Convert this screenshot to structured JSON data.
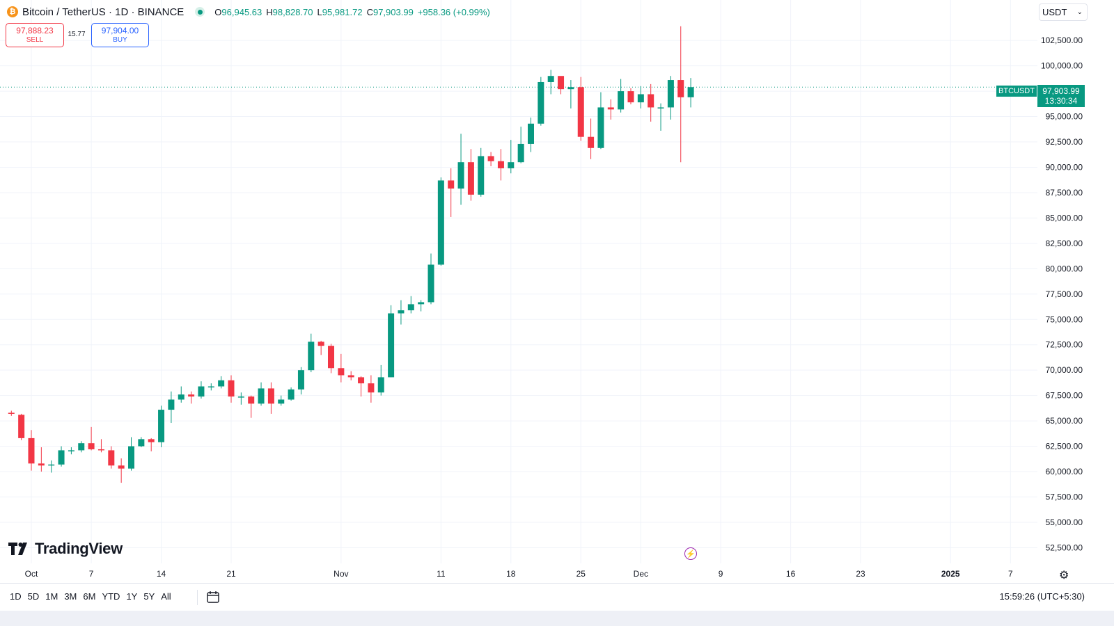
{
  "header": {
    "coin_icon": "bitcoin-icon",
    "symbol_title": "Bitcoin / TetherUS · 1D · BINANCE",
    "ohlc": [
      {
        "k": "O",
        "v": "96,945.63"
      },
      {
        "k": "H",
        "v": "98,828.70"
      },
      {
        "k": "L",
        "v": "95,981.72"
      },
      {
        "k": "C",
        "v": "97,903.99"
      },
      {
        "k": "",
        "v": "+958.36 (+0.99%)"
      }
    ]
  },
  "trading": {
    "sell_price": "97,888.23",
    "sell_label": "SELL",
    "spread": "15.77",
    "buy_price": "97,904.00",
    "buy_label": "BUY"
  },
  "currency": {
    "label": "USDT",
    "icon": "chevron-down-icon"
  },
  "price_tag": {
    "symbol": "BTCUSDT",
    "price": "97,903.99",
    "countdown": "13:30:34"
  },
  "logo_text": "TradingView",
  "bottom": {
    "ranges": [
      "1D",
      "5D",
      "1M",
      "3M",
      "6M",
      "YTD",
      "1Y",
      "5Y",
      "All"
    ],
    "calendar_icon": "calendar-icon",
    "clock": "15:59:26 (UTC+5:30)"
  },
  "colors": {
    "up": "#089981",
    "down": "#f23645",
    "grid": "#f0f3fa",
    "text": "#131722"
  },
  "chart_data": {
    "type": "candlestick",
    "title": "Bitcoin / TetherUS · 1D · BINANCE",
    "xlabel": "",
    "ylabel": "",
    "ylim": [
      51500,
      104500
    ],
    "y_ticks": [
      52500,
      55000,
      57500,
      60000,
      62500,
      65000,
      67500,
      70000,
      72500,
      75000,
      77500,
      80000,
      82500,
      85000,
      87500,
      90000,
      92500,
      95000,
      97500,
      100000,
      102500
    ],
    "y_tick_labels": [
      "52,500.00",
      "55,000.00",
      "57,500.00",
      "60,000.00",
      "62,500.00",
      "65,000.00",
      "67,500.00",
      "70,000.00",
      "72,500.00",
      "75,000.00",
      "77,500.00",
      "80,000.00",
      "82,500.00",
      "85,000.00",
      "87,500.00",
      "90,000.00",
      "92,500.00",
      "95,000.00",
      "97,500.00",
      "100,000.00",
      "102,500.00"
    ],
    "x_tick_labels": [
      {
        "label": "Oct",
        "date": "2024-10-01"
      },
      {
        "label": "7",
        "date": "2024-10-07"
      },
      {
        "label": "14",
        "date": "2024-10-14"
      },
      {
        "label": "21",
        "date": "2024-10-21"
      },
      {
        "label": "Nov",
        "date": "2024-11-01"
      },
      {
        "label": "11",
        "date": "2024-11-11"
      },
      {
        "label": "18",
        "date": "2024-11-18"
      },
      {
        "label": "25",
        "date": "2024-11-25"
      },
      {
        "label": "Dec",
        "date": "2024-12-01"
      },
      {
        "label": "9",
        "date": "2024-12-09"
      },
      {
        "label": "16",
        "date": "2024-12-16"
      },
      {
        "label": "23",
        "date": "2024-12-23"
      },
      {
        "label": "2025",
        "date": "2025-01-01"
      },
      {
        "label": "7",
        "date": "2025-01-07"
      }
    ],
    "candles": [
      {
        "date": "2024-09-29",
        "o": 65800,
        "h": 66000,
        "l": 65500,
        "c": 65700
      },
      {
        "date": "2024-09-30",
        "o": 65600,
        "h": 65700,
        "l": 63100,
        "c": 63300
      },
      {
        "date": "2024-10-01",
        "o": 63300,
        "h": 64100,
        "l": 60100,
        "c": 60800
      },
      {
        "date": "2024-10-02",
        "o": 60800,
        "h": 62400,
        "l": 60000,
        "c": 60600
      },
      {
        "date": "2024-10-03",
        "o": 60600,
        "h": 61100,
        "l": 59900,
        "c": 60700
      },
      {
        "date": "2024-10-04",
        "o": 60700,
        "h": 62500,
        "l": 60500,
        "c": 62100
      },
      {
        "date": "2024-10-05",
        "o": 62100,
        "h": 62400,
        "l": 61700,
        "c": 62100
      },
      {
        "date": "2024-10-06",
        "o": 62100,
        "h": 63000,
        "l": 61900,
        "c": 62800
      },
      {
        "date": "2024-10-07",
        "o": 62800,
        "h": 64400,
        "l": 62100,
        "c": 62200
      },
      {
        "date": "2024-10-08",
        "o": 62200,
        "h": 63200,
        "l": 61900,
        "c": 62100
      },
      {
        "date": "2024-10-09",
        "o": 62100,
        "h": 62500,
        "l": 60300,
        "c": 60600
      },
      {
        "date": "2024-10-10",
        "o": 60600,
        "h": 61300,
        "l": 58900,
        "c": 60300
      },
      {
        "date": "2024-10-11",
        "o": 60300,
        "h": 63400,
        "l": 60100,
        "c": 62500
      },
      {
        "date": "2024-10-12",
        "o": 62500,
        "h": 63400,
        "l": 62400,
        "c": 63200
      },
      {
        "date": "2024-10-13",
        "o": 63200,
        "h": 63300,
        "l": 62000,
        "c": 62900
      },
      {
        "date": "2024-10-14",
        "o": 62900,
        "h": 66500,
        "l": 62400,
        "c": 66100
      },
      {
        "date": "2024-10-15",
        "o": 66100,
        "h": 67900,
        "l": 64800,
        "c": 67100
      },
      {
        "date": "2024-10-16",
        "o": 67100,
        "h": 68400,
        "l": 66800,
        "c": 67600
      },
      {
        "date": "2024-10-17",
        "o": 67600,
        "h": 67900,
        "l": 66700,
        "c": 67400
      },
      {
        "date": "2024-10-18",
        "o": 67400,
        "h": 68900,
        "l": 67200,
        "c": 68400
      },
      {
        "date": "2024-10-19",
        "o": 68400,
        "h": 68700,
        "l": 68000,
        "c": 68400
      },
      {
        "date": "2024-10-20",
        "o": 68400,
        "h": 69400,
        "l": 68200,
        "c": 69000
      },
      {
        "date": "2024-10-21",
        "o": 69000,
        "h": 69500,
        "l": 66800,
        "c": 67400
      },
      {
        "date": "2024-10-22",
        "o": 67400,
        "h": 67800,
        "l": 66600,
        "c": 67400
      },
      {
        "date": "2024-10-23",
        "o": 67400,
        "h": 67500,
        "l": 65300,
        "c": 66700
      },
      {
        "date": "2024-10-24",
        "o": 66700,
        "h": 68800,
        "l": 66500,
        "c": 68200
      },
      {
        "date": "2024-10-25",
        "o": 68200,
        "h": 68800,
        "l": 65700,
        "c": 66700
      },
      {
        "date": "2024-10-26",
        "o": 66700,
        "h": 67500,
        "l": 66500,
        "c": 67100
      },
      {
        "date": "2024-10-27",
        "o": 67100,
        "h": 68300,
        "l": 67000,
        "c": 68100
      },
      {
        "date": "2024-10-28",
        "o": 68100,
        "h": 70300,
        "l": 67600,
        "c": 70000
      },
      {
        "date": "2024-10-29",
        "o": 70000,
        "h": 73600,
        "l": 69800,
        "c": 72800
      },
      {
        "date": "2024-10-30",
        "o": 72800,
        "h": 72900,
        "l": 71500,
        "c": 72400
      },
      {
        "date": "2024-10-31",
        "o": 72400,
        "h": 72600,
        "l": 69700,
        "c": 70200
      },
      {
        "date": "2024-11-01",
        "o": 70200,
        "h": 71600,
        "l": 68800,
        "c": 69500
      },
      {
        "date": "2024-11-02",
        "o": 69500,
        "h": 69900,
        "l": 69000,
        "c": 69300
      },
      {
        "date": "2024-11-03",
        "o": 69300,
        "h": 69400,
        "l": 67400,
        "c": 68700
      },
      {
        "date": "2024-11-04",
        "o": 68700,
        "h": 69500,
        "l": 66800,
        "c": 67800
      },
      {
        "date": "2024-11-05",
        "o": 67800,
        "h": 70500,
        "l": 67500,
        "c": 69300
      },
      {
        "date": "2024-11-06",
        "o": 69300,
        "h": 76400,
        "l": 69300,
        "c": 75600
      },
      {
        "date": "2024-11-07",
        "o": 75600,
        "h": 76900,
        "l": 74500,
        "c": 75900
      },
      {
        "date": "2024-11-08",
        "o": 75900,
        "h": 77300,
        "l": 75600,
        "c": 76500
      },
      {
        "date": "2024-11-09",
        "o": 76500,
        "h": 76900,
        "l": 75800,
        "c": 76700
      },
      {
        "date": "2024-11-10",
        "o": 76700,
        "h": 81500,
        "l": 76500,
        "c": 80400
      },
      {
        "date": "2024-11-11",
        "o": 80400,
        "h": 89000,
        "l": 80300,
        "c": 88700
      },
      {
        "date": "2024-11-12",
        "o": 88700,
        "h": 89900,
        "l": 85100,
        "c": 87900
      },
      {
        "date": "2024-11-13",
        "o": 87900,
        "h": 93300,
        "l": 86300,
        "c": 90500
      },
      {
        "date": "2024-11-14",
        "o": 90500,
        "h": 91800,
        "l": 86700,
        "c": 87300
      },
      {
        "date": "2024-11-15",
        "o": 87300,
        "h": 91900,
        "l": 87100,
        "c": 91100
      },
      {
        "date": "2024-11-16",
        "o": 91100,
        "h": 91500,
        "l": 90100,
        "c": 90600
      },
      {
        "date": "2024-11-17",
        "o": 90600,
        "h": 91800,
        "l": 88700,
        "c": 89900
      },
      {
        "date": "2024-11-18",
        "o": 89900,
        "h": 92700,
        "l": 89400,
        "c": 90500
      },
      {
        "date": "2024-11-19",
        "o": 90500,
        "h": 94000,
        "l": 90400,
        "c": 92300
      },
      {
        "date": "2024-11-20",
        "o": 92300,
        "h": 94900,
        "l": 91500,
        "c": 94300
      },
      {
        "date": "2024-11-21",
        "o": 94300,
        "h": 98900,
        "l": 94100,
        "c": 98400
      },
      {
        "date": "2024-11-22",
        "o": 98400,
        "h": 99600,
        "l": 97200,
        "c": 99000
      },
      {
        "date": "2024-11-23",
        "o": 99000,
        "h": 98900,
        "l": 97200,
        "c": 97700
      },
      {
        "date": "2024-11-24",
        "o": 97700,
        "h": 98600,
        "l": 95800,
        "c": 97900
      },
      {
        "date": "2024-11-25",
        "o": 97900,
        "h": 98900,
        "l": 92600,
        "c": 93000
      },
      {
        "date": "2024-11-26",
        "o": 93000,
        "h": 94800,
        "l": 90800,
        "c": 91900
      },
      {
        "date": "2024-11-27",
        "o": 91900,
        "h": 97400,
        "l": 91800,
        "c": 95900
      },
      {
        "date": "2024-11-28",
        "o": 95900,
        "h": 96700,
        "l": 94700,
        "c": 95700
      },
      {
        "date": "2024-11-29",
        "o": 95700,
        "h": 98700,
        "l": 95400,
        "c": 97500
      },
      {
        "date": "2024-11-30",
        "o": 97500,
        "h": 97800,
        "l": 96200,
        "c": 96400
      },
      {
        "date": "2024-12-01",
        "o": 96400,
        "h": 98000,
        "l": 95800,
        "c": 97200
      },
      {
        "date": "2024-12-02",
        "o": 97200,
        "h": 98200,
        "l": 94500,
        "c": 95900
      },
      {
        "date": "2024-12-03",
        "o": 95900,
        "h": 96300,
        "l": 93600,
        "c": 95900
      },
      {
        "date": "2024-12-04",
        "o": 95900,
        "h": 99000,
        "l": 94700,
        "c": 98600
      },
      {
        "date": "2024-12-05",
        "o": 98600,
        "h": 103900,
        "l": 90500,
        "c": 96900
      },
      {
        "date": "2024-12-06",
        "o": 96900,
        "h": 98800,
        "l": 95900,
        "c": 97900
      }
    ]
  }
}
